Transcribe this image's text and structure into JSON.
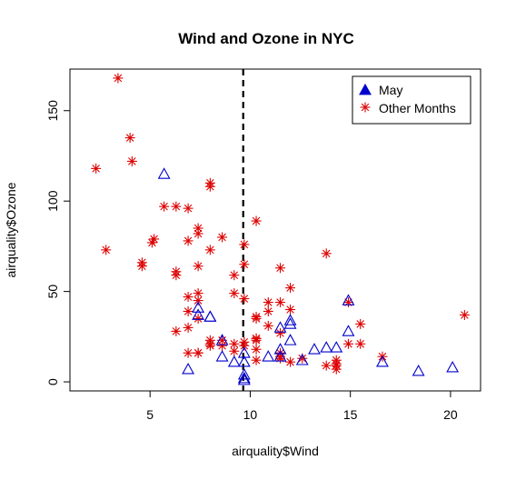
{
  "colors": {
    "may": "#0000cc",
    "other": "#dd0000",
    "axis": "#000000",
    "background": "#ffffff"
  },
  "chart_data": {
    "type": "scatter",
    "title": "Wind and Ozone in NYC",
    "xlabel": "airquality$Wind",
    "ylabel": "airquality$Ozone",
    "xlim": [
      1.0,
      21.5
    ],
    "ylim": [
      -5,
      173
    ],
    "xticks": [
      5,
      10,
      15,
      20
    ],
    "yticks": [
      0,
      50,
      100,
      150
    ],
    "vline": {
      "x": 9.65,
      "style": "dashed"
    },
    "legend_position": "top-right",
    "series": [
      {
        "name": "May",
        "marker": "open-triangle",
        "color": "#0000cc",
        "x": [
          7.4,
          8.0,
          12.6,
          11.5,
          14.3,
          14.9,
          8.6,
          13.8,
          20.1,
          8.6,
          6.9,
          9.7,
          9.2,
          10.9,
          13.2,
          11.5,
          12.0,
          18.4,
          11.5,
          9.7,
          9.7,
          16.6,
          9.7,
          12.0,
          12.0,
          14.9,
          5.7,
          7.4,
          9.7,
          8.0
        ],
        "y": [
          41,
          36,
          12,
          18,
          19,
          28,
          23,
          19,
          8,
          14,
          7,
          16,
          11,
          14,
          18,
          14,
          34,
          6,
          30,
          11,
          1,
          11,
          4,
          32,
          23,
          45,
          115,
          37,
          2,
          36
        ]
      },
      {
        "name": "Other Months",
        "marker": "asterisk",
        "color": "#dd0000",
        "x": [
          3.4,
          4.0,
          4.1,
          2.3,
          5.7,
          8.0,
          8.0,
          10.3,
          6.3,
          6.9,
          7.4,
          7.4,
          8.6,
          6.9,
          5.2,
          5.1,
          4.6,
          4.6,
          2.8,
          6.3,
          6.3,
          7.4,
          9.7,
          9.7,
          11.5,
          12.0,
          10.9,
          9.7,
          14.3,
          13.8,
          11.5,
          12.0,
          10.3,
          9.2,
          8.0,
          6.9,
          7.4,
          7.4,
          6.3,
          6.9,
          7.4,
          8.0,
          9.2,
          9.7,
          10.3,
          10.9,
          11.5,
          11.5,
          10.3,
          6.9,
          7.4,
          8.0,
          8.6,
          9.2,
          9.7,
          10.3,
          10.3,
          10.9,
          11.5,
          12.6,
          14.3,
          14.9,
          15.5,
          16.6,
          13.8,
          14.3,
          14.9,
          15.5,
          20.7,
          7.4,
          6.9,
          8.0,
          8.6,
          9.2,
          10.3,
          10.3,
          11.5,
          12.0,
          14.3
        ],
        "y": [
          168,
          135,
          122,
          118,
          97,
          110,
          108,
          89,
          97,
          96,
          85,
          82,
          80,
          78,
          79,
          77,
          66,
          64,
          73,
          61,
          59,
          64,
          76,
          65,
          63,
          52,
          44,
          46,
          10,
          71,
          44,
          40,
          36,
          59,
          73,
          39,
          49,
          45,
          28,
          47,
          35,
          21,
          49,
          20,
          35,
          39,
          16,
          13,
          24,
          30,
          16,
          23,
          20,
          21,
          22,
          24,
          18,
          31,
          27,
          13,
          7,
          21,
          21,
          14,
          9,
          12,
          44,
          32,
          37,
          16,
          16,
          20,
          23,
          17,
          23,
          12,
          14,
          11,
          9
        ]
      }
    ]
  }
}
